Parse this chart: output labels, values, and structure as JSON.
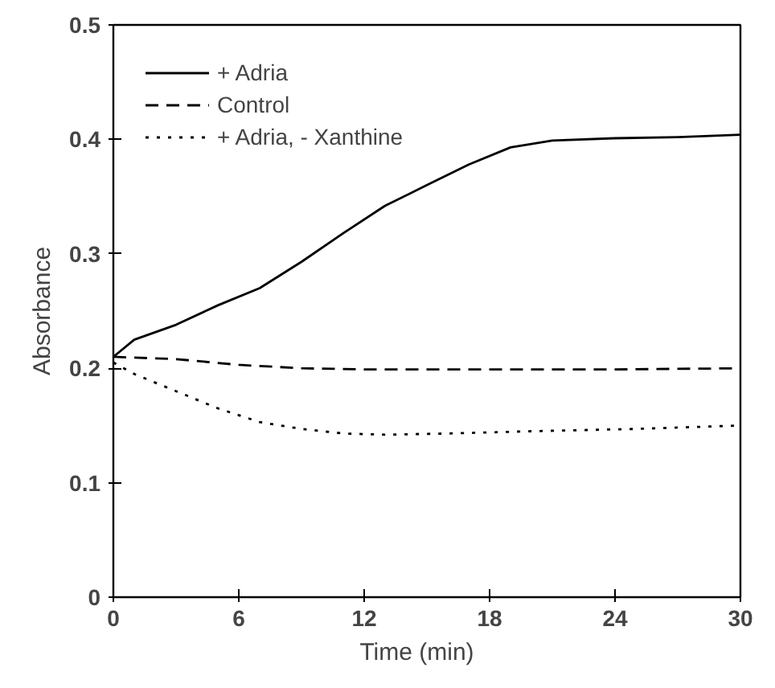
{
  "chart_data": {
    "type": "line",
    "xlabel": "Time    (min)",
    "ylabel": "Absorbance",
    "xlim": [
      0,
      30
    ],
    "ylim": [
      0,
      0.5
    ],
    "xticks": [
      0,
      6,
      12,
      18,
      24,
      30
    ],
    "yticks": [
      0,
      0.1,
      0.2,
      0.3,
      0.4,
      0.5
    ],
    "grid": false,
    "legend": "top left",
    "marker": "none",
    "series": [
      {
        "name": "+ Adria",
        "color": "#000000",
        "line_style": "solid",
        "x": [
          0,
          1,
          3,
          5,
          7,
          9,
          11,
          13,
          15,
          17,
          19,
          21,
          24,
          27,
          30
        ],
        "values": [
          0.21,
          0.225,
          0.238,
          0.255,
          0.27,
          0.293,
          0.318,
          0.342,
          0.36,
          0.378,
          0.393,
          0.399,
          0.401,
          0.402,
          0.404
        ]
      },
      {
        "name": "Control",
        "color": "#000000",
        "line_style": "dashed",
        "x": [
          0,
          3,
          6,
          9,
          12,
          18,
          24,
          30
        ],
        "values": [
          0.21,
          0.208,
          0.203,
          0.2,
          0.199,
          0.199,
          0.199,
          0.2
        ]
      },
      {
        "name": "+ Adria, - Xanthine",
        "color": "#000000",
        "line_style": "dotted",
        "x": [
          0,
          1,
          3,
          5,
          7,
          9,
          11,
          13,
          16,
          20,
          25,
          30
        ],
        "values": [
          0.205,
          0.195,
          0.18,
          0.165,
          0.153,
          0.147,
          0.143,
          0.142,
          0.143,
          0.145,
          0.147,
          0.15
        ]
      }
    ]
  }
}
